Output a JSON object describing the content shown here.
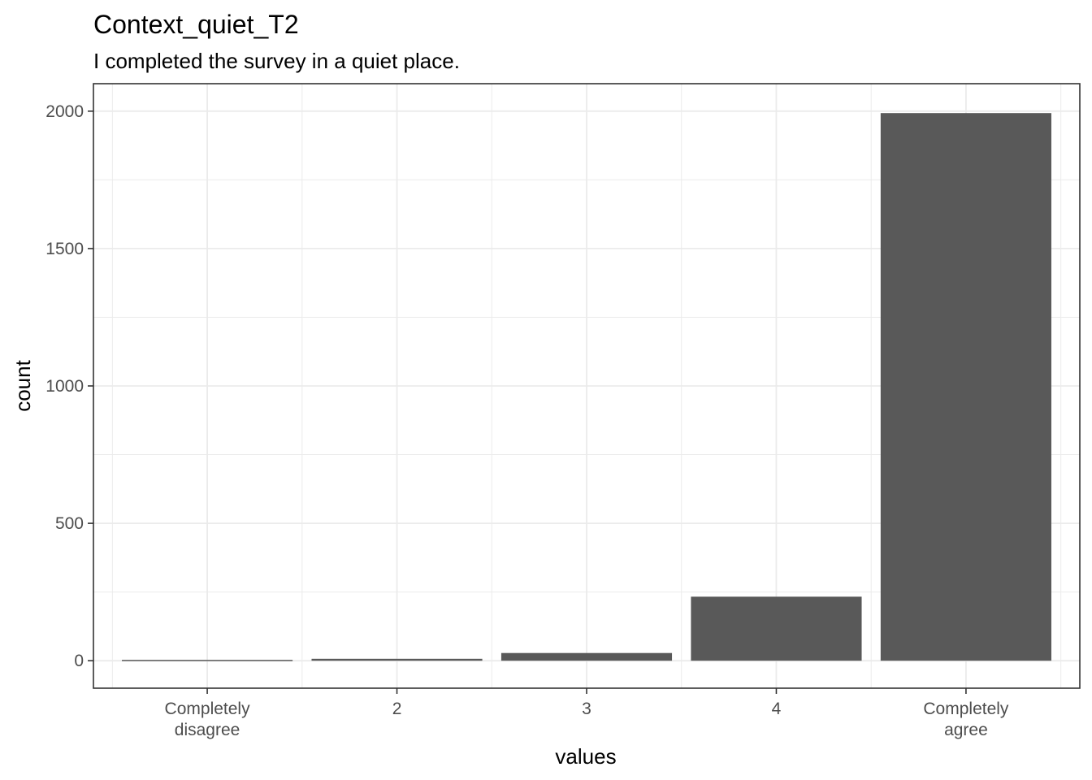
{
  "chart_data": {
    "type": "bar",
    "title": "Context_quiet_T2",
    "subtitle": "I completed the survey in a quiet place.",
    "xlabel": "values",
    "ylabel": "count",
    "categories": [
      [
        "Completely",
        "disagree"
      ],
      [
        "2"
      ],
      [
        "3"
      ],
      [
        "4"
      ],
      [
        "Completely",
        "agree"
      ]
    ],
    "values": [
      3,
      7,
      28,
      233,
      1993
    ],
    "ylim": [
      -100,
      2100
    ],
    "yticks": [
      0,
      500,
      1000,
      1500,
      2000
    ],
    "ytick_labels": [
      "0",
      "500",
      "1000",
      "1500",
      "2000"
    ],
    "grid": true,
    "bar_color": "#595959",
    "grid_color": "#ebebeb",
    "panel_border_color": "#333333"
  }
}
